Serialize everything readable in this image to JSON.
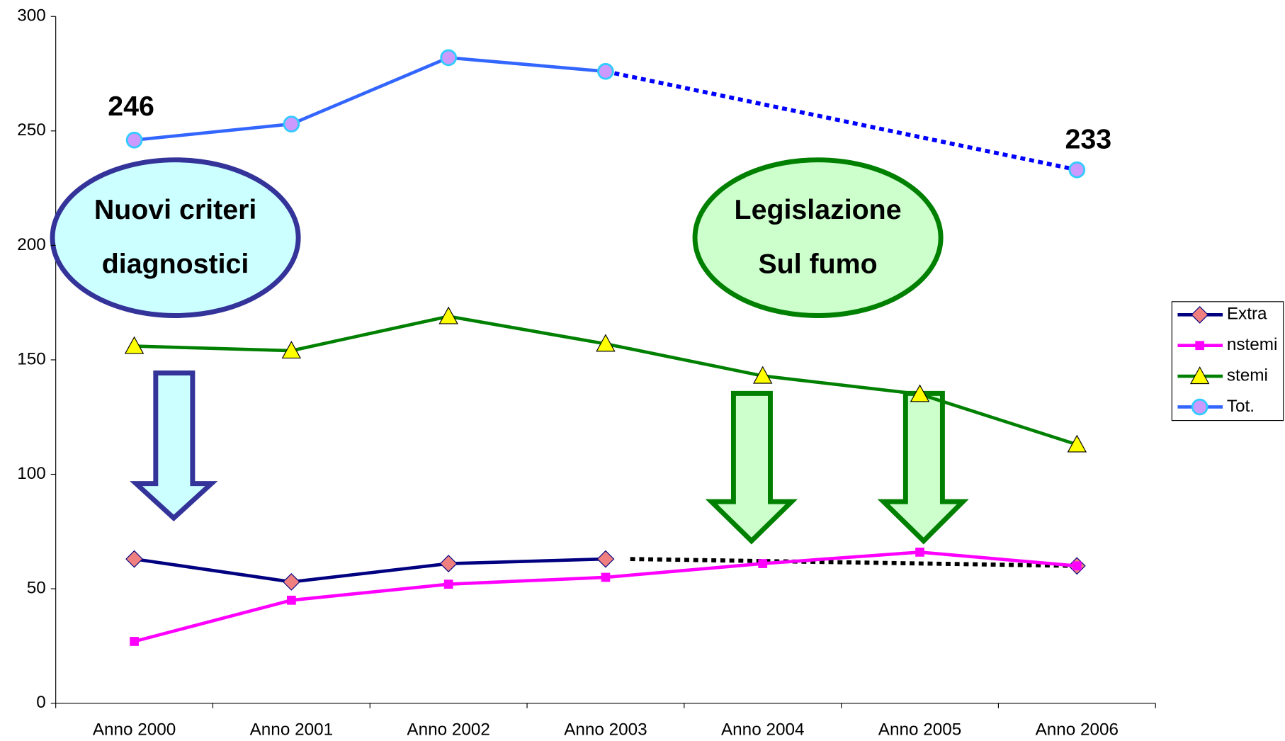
{
  "chart_data": {
    "type": "line",
    "categories": [
      "Anno 2000",
      "Anno 2001",
      "Anno 2002",
      "Anno 2003",
      "Anno 2004",
      "Anno 2005",
      "Anno 2006"
    ],
    "series": [
      {
        "name": "Extra",
        "color": "#000080",
        "marker_color": "#f08080",
        "marker": "diamond",
        "values": [
          63,
          53,
          61,
          63,
          null,
          null,
          60
        ]
      },
      {
        "name": "nstemi",
        "color": "#ff00ff",
        "marker_color": "#ff00ff",
        "marker": "square",
        "values": [
          27,
          45,
          52,
          55,
          61,
          66,
          60
        ]
      },
      {
        "name": "stemi",
        "color": "#008000",
        "marker_color": "#ffff00",
        "marker": "triangle",
        "values": [
          156,
          154,
          169,
          157,
          143,
          135,
          113
        ]
      },
      {
        "name": "Tot.",
        "color": "#3366ff",
        "marker_color": "#cc99ff",
        "marker": "circle",
        "values": [
          246,
          253,
          282,
          276,
          null,
          null,
          233
        ]
      }
    ],
    "ylim": [
      0,
      300
    ],
    "yticks": [
      0,
      50,
      100,
      150,
      200,
      250,
      300
    ],
    "grid": false,
    "legend": "right",
    "annotations": [
      [
        "Nuovi criteri",
        "diagnostici"
      ],
      [
        "Legislazione",
        "Sul fumo"
      ]
    ]
  }
}
